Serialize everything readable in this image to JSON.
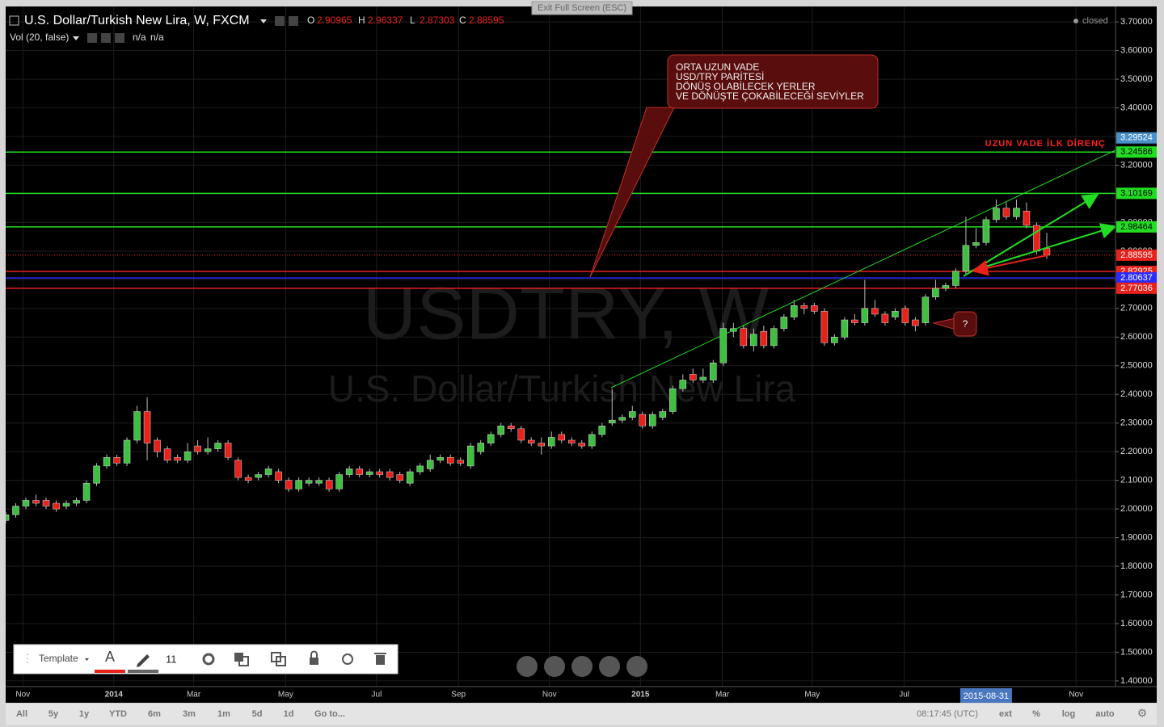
{
  "ui": {
    "exit_fullscreen": "Exit Full Screen (ESC)",
    "status": "closed",
    "indicator": "Vol (20, false)",
    "indicator_values": [
      "n/a",
      "n/a"
    ],
    "ohlc_labels": [
      "O",
      "H",
      "L",
      "C"
    ],
    "watermark": {
      "symbol": "USDTRY, W",
      "description": "U.S. Dollar/Turkish New Lira"
    },
    "toolbar": {
      "template": "Template",
      "font_size": "11"
    },
    "ranges": [
      "All",
      "5y",
      "1y",
      "YTD",
      "6m",
      "3m",
      "1m",
      "5d",
      "1d",
      "Go to..."
    ],
    "clock": "08:17:45 (UTC)",
    "scale_options": [
      "ext",
      "%",
      "log",
      "auto"
    ]
  },
  "chart_data": {
    "type": "candlestick",
    "title": "U.S. Dollar/Turkish New Lira, W, FXCM",
    "open": [
      1.96,
      1.98,
      2.01,
      2.03,
      2.03,
      2.02,
      2.01,
      2.02,
      2.03,
      2.09,
      2.15,
      2.18,
      2.16,
      2.24,
      2.34,
      2.24,
      2.21,
      2.18,
      2.17,
      2.22,
      2.2,
      2.21,
      2.23,
      2.17,
      2.11,
      2.11,
      2.12,
      2.13,
      2.1,
      2.07,
      2.09,
      2.09,
      2.1,
      2.07,
      2.12,
      2.14,
      2.12,
      2.13,
      2.13,
      2.12,
      2.09,
      2.13,
      2.14,
      2.17,
      2.18,
      2.17,
      2.15,
      2.2,
      2.23,
      2.26,
      2.29,
      2.28,
      2.24,
      2.23,
      2.22,
      2.26,
      2.24,
      2.23,
      2.22,
      2.26,
      2.3,
      2.31,
      2.32,
      2.33,
      2.29,
      2.32,
      2.34,
      2.42,
      2.47,
      2.45,
      2.45,
      2.51,
      2.62,
      2.63,
      2.57,
      2.62,
      2.57,
      2.63,
      2.67,
      2.71,
      2.71,
      2.69,
      2.58,
      2.6,
      2.66,
      2.65,
      2.7,
      2.68,
      2.67,
      2.7,
      2.66,
      2.65,
      2.74,
      2.77,
      2.78,
      2.83,
      2.92,
      2.93,
      3.01,
      3.05,
      3.02,
      3.04,
      2.99,
      2.90965
    ],
    "high": [
      1.99,
      2.02,
      2.04,
      2.05,
      2.04,
      2.03,
      2.03,
      2.04,
      2.1,
      2.16,
      2.19,
      2.19,
      2.25,
      2.36,
      2.39,
      2.25,
      2.22,
      2.19,
      2.23,
      2.24,
      2.25,
      2.24,
      2.24,
      2.18,
      2.12,
      2.13,
      2.15,
      2.14,
      2.11,
      2.11,
      2.11,
      2.11,
      2.11,
      2.13,
      2.15,
      2.15,
      2.14,
      2.14,
      2.14,
      2.13,
      2.14,
      2.16,
      2.19,
      2.19,
      2.19,
      2.18,
      2.23,
      2.24,
      2.27,
      2.3,
      2.3,
      2.29,
      2.25,
      2.25,
      2.27,
      2.27,
      2.25,
      2.24,
      2.27,
      2.3,
      2.42,
      2.33,
      2.36,
      2.34,
      2.34,
      2.35,
      2.43,
      2.47,
      2.49,
      2.49,
      2.52,
      2.65,
      2.65,
      2.64,
      2.63,
      2.64,
      2.64,
      2.68,
      2.73,
      2.72,
      2.72,
      2.7,
      2.61,
      2.67,
      2.68,
      2.8,
      2.73,
      2.69,
      2.7,
      2.71,
      2.67,
      2.75,
      2.8,
      2.79,
      2.84,
      3.02,
      2.98,
      3.02,
      3.08,
      3.07,
      3.08,
      3.07,
      3.0,
      2.96337
    ],
    "low": [
      1.95,
      1.97,
      2.0,
      2.01,
      2.0,
      1.99,
      2.0,
      2.01,
      2.02,
      2.08,
      2.14,
      2.15,
      2.15,
      2.23,
      2.17,
      2.18,
      2.16,
      2.16,
      2.16,
      2.19,
      2.19,
      2.2,
      2.17,
      2.1,
      2.09,
      2.1,
      2.11,
      2.09,
      2.06,
      2.06,
      2.08,
      2.08,
      2.06,
      2.06,
      2.11,
      2.11,
      2.11,
      2.11,
      2.1,
      2.09,
      2.08,
      2.12,
      2.13,
      2.16,
      2.15,
      2.15,
      2.14,
      2.19,
      2.22,
      2.25,
      2.27,
      2.23,
      2.22,
      2.19,
      2.21,
      2.23,
      2.22,
      2.21,
      2.21,
      2.25,
      2.29,
      2.3,
      2.31,
      2.28,
      2.28,
      2.31,
      2.33,
      2.41,
      2.44,
      2.44,
      2.44,
      2.5,
      2.6,
      2.56,
      2.55,
      2.56,
      2.56,
      2.62,
      2.66,
      2.68,
      2.68,
      2.57,
      2.57,
      2.59,
      2.64,
      2.64,
      2.67,
      2.64,
      2.66,
      2.64,
      2.62,
      2.64,
      2.73,
      2.76,
      2.77,
      2.82,
      2.91,
      2.92,
      3.0,
      3.01,
      3.01,
      2.98,
      2.89,
      2.87303
    ],
    "close": [
      1.98,
      2.01,
      2.03,
      2.02,
      2.01,
      2.0,
      2.02,
      2.03,
      2.09,
      2.15,
      2.18,
      2.16,
      2.24,
      2.34,
      2.23,
      2.2,
      2.17,
      2.17,
      2.2,
      2.2,
      2.21,
      2.23,
      2.18,
      2.11,
      2.1,
      2.12,
      2.14,
      2.1,
      2.07,
      2.1,
      2.1,
      2.1,
      2.07,
      2.12,
      2.14,
      2.12,
      2.13,
      2.12,
      2.11,
      2.1,
      2.13,
      2.15,
      2.17,
      2.18,
      2.16,
      2.16,
      2.22,
      2.23,
      2.26,
      2.29,
      2.28,
      2.24,
      2.23,
      2.22,
      2.25,
      2.24,
      2.23,
      2.22,
      2.26,
      2.29,
      2.31,
      2.32,
      2.34,
      2.29,
      2.33,
      2.34,
      2.42,
      2.45,
      2.45,
      2.46,
      2.51,
      2.63,
      2.63,
      2.57,
      2.61,
      2.57,
      2.63,
      2.67,
      2.71,
      2.7,
      2.69,
      2.58,
      2.6,
      2.66,
      2.65,
      2.7,
      2.68,
      2.65,
      2.69,
      2.65,
      2.64,
      2.74,
      2.77,
      2.78,
      2.83,
      2.92,
      2.93,
      3.01,
      3.05,
      3.02,
      3.05,
      2.99,
      2.9,
      2.88595
    ],
    "up_color": "#3fbf3f",
    "down_color": "#e8211b",
    "xlim": [
      0,
      109.8
    ],
    "xticks": [
      {
        "value": 1.7,
        "label": "Nov"
      },
      {
        "value": 10.7,
        "label": "2014"
      },
      {
        "value": 18.6,
        "label": "Mar"
      },
      {
        "value": 27.7,
        "label": "May"
      },
      {
        "value": 36.7,
        "label": "Jul"
      },
      {
        "value": 44.8,
        "label": "Sep"
      },
      {
        "value": 53.8,
        "label": "Nov"
      },
      {
        "value": 62.8,
        "label": "2015"
      },
      {
        "value": 70.9,
        "label": "Mar"
      },
      {
        "value": 79.8,
        "label": "May"
      },
      {
        "value": 88.9,
        "label": "Jul"
      },
      {
        "value": 105.9,
        "label": "Nov"
      }
    ],
    "crosshair_x": {
      "value": 97.0,
      "label": "2015-08-31"
    },
    "ylim": [
      1.38,
      3.754
    ],
    "yticks": [
      {
        "value": 1.4,
        "label": "1.40000"
      },
      {
        "value": 1.5,
        "label": "1.50000"
      },
      {
        "value": 1.6,
        "label": "1.60000"
      },
      {
        "value": 1.7,
        "label": "1.70000"
      },
      {
        "value": 1.8,
        "label": "1.80000"
      },
      {
        "value": 1.9,
        "label": "1.90000"
      },
      {
        "value": 2.0,
        "label": "2.00000"
      },
      {
        "value": 2.1,
        "label": "2.10000"
      },
      {
        "value": 2.2,
        "label": "2.20000"
      },
      {
        "value": 2.3,
        "label": "2.30000"
      },
      {
        "value": 2.4,
        "label": "2.40000"
      },
      {
        "value": 2.5,
        "label": "2.50000"
      },
      {
        "value": 2.6,
        "label": "2.60000"
      },
      {
        "value": 2.7,
        "label": "2.70000"
      },
      {
        "value": 2.8,
        "label": "2.80000"
      },
      {
        "value": 2.9,
        "label": "2.90000"
      },
      {
        "value": 3.0,
        "label": "3.00000"
      },
      {
        "value": 3.1,
        "label": "3.10000"
      },
      {
        "value": 3.2,
        "label": "3.20000"
      },
      {
        "value": 3.3,
        "label": "3.30000"
      },
      {
        "value": 3.4,
        "label": "3.40000"
      },
      {
        "value": 3.5,
        "label": "3.50000"
      },
      {
        "value": 3.6,
        "label": "3.60000"
      },
      {
        "value": 3.7,
        "label": "3.70000"
      }
    ],
    "grid": true,
    "levels": [
      {
        "value": 3.29524,
        "color": "#4a90c8",
        "line": "none"
      },
      {
        "value": 3.24586,
        "color": "#22dd22",
        "line": "solid"
      },
      {
        "value": 3.10169,
        "color": "#22dd22",
        "line": "solid"
      },
      {
        "value": 2.98464,
        "color": "#22dd22",
        "line": "solid"
      },
      {
        "value": 2.88595,
        "color": "#e8211b",
        "line": "dotted"
      },
      {
        "value": 2.82925,
        "color": "#e8211b",
        "line": "solid"
      },
      {
        "value": 2.80637,
        "color": "#2a2aff",
        "line": "solid"
      },
      {
        "value": 2.77036,
        "color": "#e8211b",
        "line": "solid"
      }
    ],
    "annotations": {
      "callout": [
        "ORTA UZUN VADE",
        "USD/TRY PARİTESİ",
        "DÖNÜŞ OLABİLECEK YERLER",
        "VE DÖNÜŞTE ÇOKABİLECEĞİ SEVİYLER"
      ],
      "resistance": "UZUN VADE İLK DİRENÇ",
      "question": "?"
    }
  }
}
